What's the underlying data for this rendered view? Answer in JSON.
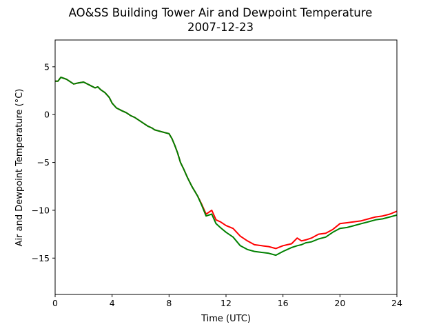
{
  "chart_data": {
    "type": "line",
    "title": "AO&SS Building Tower Air and Dewpoint Temperature",
    "subtitle": "2007-12-23",
    "xlabel": "Time (UTC)",
    "ylabel": "Air and Dewpoint Temperature (°C)",
    "xlim": [
      0,
      24
    ],
    "ylim": [
      -18.8,
      7.8
    ],
    "xticks": [
      0,
      4,
      8,
      12,
      16,
      20,
      24
    ],
    "yticks": [
      5,
      0,
      -5,
      -10,
      -15
    ],
    "ytick_labels": [
      "5",
      "0",
      "−5",
      "−10",
      "−15"
    ],
    "grid": false,
    "legend": "none",
    "series": [
      {
        "color": "#ff0000",
        "x": [
          0,
          0.2,
          0.4,
          0.6,
          0.8,
          1.0,
          1.3,
          1.6,
          2.0,
          2.4,
          2.8,
          3.0,
          3.2,
          3.5,
          3.8,
          4.0,
          4.3,
          4.7,
          5.0,
          5.3,
          5.6,
          6.0,
          6.3,
          6.5,
          6.8,
          7.0,
          7.5,
          8.0,
          8.2,
          8.4,
          8.6,
          8.8,
          9.0,
          9.3,
          9.6,
          10.0,
          10.3,
          10.6,
          11.0,
          11.3,
          11.6,
          12.0,
          12.5,
          13.0,
          13.5,
          14.0,
          14.5,
          15.0,
          15.5,
          16.0,
          16.3,
          16.6,
          17.0,
          17.3,
          17.6,
          18.0,
          18.5,
          19.0,
          19.5,
          20.0,
          20.5,
          21.0,
          21.5,
          22.0,
          22.5,
          23.0,
          23.5,
          24.0
        ],
        "y": [
          3.5,
          3.5,
          3.9,
          3.8,
          3.7,
          3.5,
          3.2,
          3.3,
          3.4,
          3.1,
          2.8,
          2.9,
          2.6,
          2.3,
          1.8,
          1.2,
          0.7,
          0.4,
          0.2,
          -0.1,
          -0.3,
          -0.7,
          -1.0,
          -1.2,
          -1.4,
          -1.6,
          -1.8,
          -2.0,
          -2.5,
          -3.2,
          -4.0,
          -5.0,
          -5.6,
          -6.6,
          -7.5,
          -8.5,
          -9.4,
          -10.4,
          -10.0,
          -11.0,
          -11.2,
          -11.6,
          -11.9,
          -12.7,
          -13.2,
          -13.6,
          -13.7,
          -13.8,
          -14.0,
          -13.7,
          -13.6,
          -13.5,
          -12.9,
          -13.2,
          -13.1,
          -12.9,
          -12.5,
          -12.4,
          -12.0,
          -11.4,
          -11.3,
          -11.2,
          -11.1,
          -10.9,
          -10.7,
          -10.6,
          -10.4,
          -10.1
        ]
      },
      {
        "color": "#008000",
        "x": [
          0,
          0.2,
          0.4,
          0.6,
          0.8,
          1.0,
          1.3,
          1.6,
          2.0,
          2.4,
          2.8,
          3.0,
          3.2,
          3.5,
          3.8,
          4.0,
          4.3,
          4.7,
          5.0,
          5.3,
          5.6,
          6.0,
          6.3,
          6.5,
          6.8,
          7.0,
          7.5,
          8.0,
          8.2,
          8.4,
          8.6,
          8.8,
          9.0,
          9.3,
          9.6,
          10.0,
          10.3,
          10.6,
          11.0,
          11.3,
          11.6,
          12.0,
          12.5,
          13.0,
          13.5,
          14.0,
          14.5,
          15.0,
          15.5,
          16.0,
          16.3,
          16.6,
          17.0,
          17.3,
          17.6,
          18.0,
          18.5,
          19.0,
          19.5,
          20.0,
          20.5,
          21.0,
          21.5,
          22.0,
          22.5,
          23.0,
          23.5,
          24.0
        ],
        "y": [
          3.5,
          3.5,
          3.9,
          3.8,
          3.7,
          3.5,
          3.2,
          3.3,
          3.4,
          3.1,
          2.8,
          2.9,
          2.6,
          2.3,
          1.8,
          1.2,
          0.7,
          0.4,
          0.2,
          -0.1,
          -0.3,
          -0.7,
          -1.0,
          -1.2,
          -1.4,
          -1.6,
          -1.8,
          -2.0,
          -2.5,
          -3.2,
          -4.0,
          -5.0,
          -5.6,
          -6.6,
          -7.5,
          -8.5,
          -9.5,
          -10.6,
          -10.4,
          -11.4,
          -11.8,
          -12.3,
          -12.8,
          -13.7,
          -14.1,
          -14.3,
          -14.4,
          -14.5,
          -14.7,
          -14.3,
          -14.1,
          -13.9,
          -13.7,
          -13.6,
          -13.4,
          -13.3,
          -13.0,
          -12.8,
          -12.3,
          -11.9,
          -11.8,
          -11.6,
          -11.4,
          -11.2,
          -11.0,
          -10.9,
          -10.7,
          -10.5
        ]
      }
    ]
  }
}
